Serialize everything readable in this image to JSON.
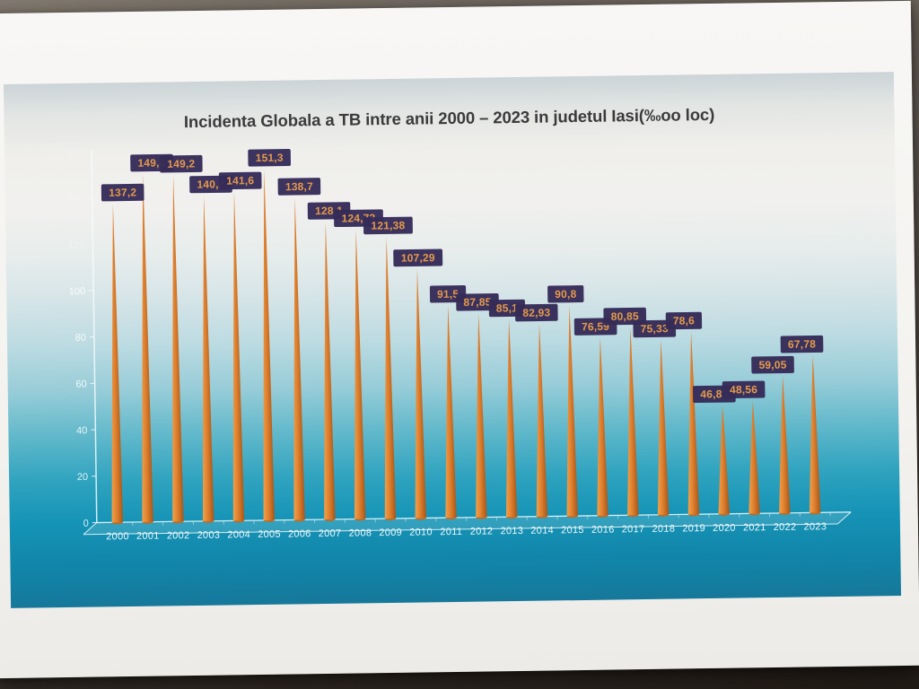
{
  "chart_data": {
    "type": "bar",
    "bar_style": "needle-cone-3d",
    "title": "Incidenta Globala a TB intre anii 2000 – 2023 in judetul Iasi(‰oo loc)",
    "categories": [
      "2000",
      "2001",
      "2002",
      "2003",
      "2004",
      "2005",
      "2006",
      "2007",
      "2008",
      "2009",
      "2010",
      "2011",
      "2012",
      "2013",
      "2014",
      "2015",
      "2016",
      "2017",
      "2018",
      "2019",
      "2020",
      "2021",
      "2022",
      "2023"
    ],
    "values": [
      137.2,
      149.8,
      149.2,
      140.2,
      141.6,
      151.3,
      138.7,
      128.1,
      124.73,
      121.38,
      107.29,
      91.5,
      87.85,
      85.1,
      82.93,
      90.8,
      76.59,
      80.85,
      75.33,
      78.6,
      46.83,
      48.56,
      59.05,
      67.78
    ],
    "labels": [
      "137,2",
      "149,8",
      "149,2",
      "140,2",
      "141,6",
      "151,3",
      "138,7",
      "128,1",
      "124,73",
      "121,38",
      "107,29",
      "91,5",
      "87,85",
      "85,1",
      "82,93",
      "90,8",
      "76,59",
      "80,85",
      "75,33",
      "78,6",
      "46,83",
      "48,56",
      "59,05",
      "67,78"
    ],
    "xlabel": "",
    "ylabel": "",
    "ylim": [
      0,
      160
    ],
    "yticks": [
      0,
      20,
      40,
      60,
      80,
      100,
      120,
      140,
      160
    ],
    "grid": false,
    "legend": null,
    "colors": {
      "bar": "#e0812f",
      "bar_light": "#f2a14b",
      "bar_dark": "#a85618",
      "bar_base": "#bf6a22",
      "label_box": "#342b57",
      "label_text": "#e59a4c",
      "axis": "#f4fbfc",
      "tick_text": "#ffffff",
      "title": "#3b3a3c"
    }
  }
}
